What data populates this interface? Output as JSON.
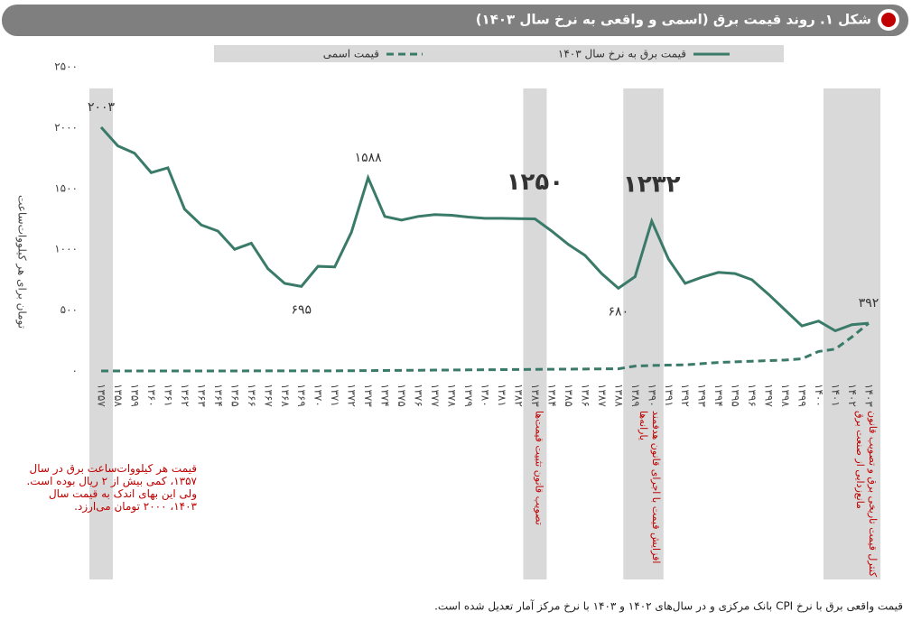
{
  "chart_data": {
    "type": "line",
    "title": "شکل ۱. روند قیمت برق (اسمی و واقعی به نرخ سال ۱۴۰۳)",
    "y_label": "تومان برای هر کیلووات‌ساعت",
    "footnote": "قیمت واقعی برق با نرخ CPI بانک مرکزی و در سال‌های ۱۴۰۲ و ۱۴۰۳ با نرخ مرکز آمار تعدیل شده است.",
    "categories": [
      "۱۳۵۷",
      "۱۳۵۸",
      "۱۳۵۹",
      "۱۳۶۰",
      "۱۳۶۱",
      "۱۳۶۲",
      "۱۳۶۳",
      "۱۳۶۴",
      "۱۳۶۵",
      "۱۳۶۶",
      "۱۳۶۷",
      "۱۳۶۸",
      "۱۳۶۹",
      "۱۳۷۰",
      "۱۳۷۱",
      "۱۳۷۲",
      "۱۳۷۳",
      "۱۳۷۴",
      "۱۳۷۵",
      "۱۳۷۶",
      "۱۳۷۷",
      "۱۳۷۸",
      "۱۳۷۹",
      "۱۳۸۰",
      "۱۳۸۱",
      "۱۳۸۲",
      "۱۳۸۳",
      "۱۳۸۴",
      "۱۳۸۵",
      "۱۳۸۶",
      "۱۳۸۷",
      "۱۳۸۸",
      "۱۳۸۹",
      "۱۳۹۰",
      "۱۳۹۱",
      "۱۳۹۲",
      "۱۳۹۳",
      "۱۳۹۴",
      "۱۳۹۵",
      "۱۳۹۶",
      "۱۳۹۷",
      "۱۳۹۸",
      "۱۳۹۹",
      "۱۴۰۰",
      "۱۴۰۱",
      "۱۴۰۲",
      "۱۴۰۳"
    ],
    "series": [
      {
        "name": "قیمت اسمی",
        "color": "#3a7a68",
        "dashed": true,
        "values": [
          0.2,
          0.2,
          0.2,
          0.2,
          0.3,
          0.3,
          0.3,
          0.3,
          0.4,
          0.5,
          0.5,
          0.6,
          0.7,
          1,
          1.2,
          2,
          3,
          4,
          5,
          6,
          7,
          8,
          9,
          10,
          11,
          12,
          13,
          14,
          15,
          16,
          17,
          18,
          40,
          45,
          48,
          50,
          60,
          70,
          75,
          80,
          85,
          90,
          100,
          160,
          180,
          280,
          392
        ]
      },
      {
        "name": "قیمت برق به نرخ سال ۱۴۰۳",
        "color": "#3a7a68",
        "dashed": false,
        "values": [
          2003,
          1850,
          1790,
          1630,
          1670,
          1330,
          1200,
          1150,
          1000,
          1050,
          840,
          720,
          695,
          860,
          855,
          1140,
          1588,
          1270,
          1240,
          1270,
          1285,
          1280,
          1265,
          1255,
          1255,
          1252,
          1250,
          1150,
          1040,
          950,
          800,
          680,
          775,
          1232,
          920,
          720,
          770,
          810,
          800,
          750,
          630,
          500,
          370,
          410,
          330,
          380,
          392
        ],
        "value_labels": [
          "۲۰۰۳",
          null,
          null,
          null,
          null,
          null,
          null,
          null,
          null,
          null,
          null,
          null,
          "۶۹۵",
          null,
          null,
          null,
          "۱۵۸۸",
          null,
          null,
          null,
          null,
          null,
          null,
          null,
          null,
          null,
          "۱۲۵۰",
          null,
          null,
          null,
          null,
          "۶۸۰",
          null,
          "۱۲۳۲",
          null,
          null,
          null,
          null,
          null,
          null,
          null,
          null,
          null,
          null,
          null,
          null,
          "۳۹۲"
        ]
      }
    ],
    "ylim": [
      0,
      2500
    ],
    "yticks": [
      {
        "value": 0,
        "label": "۰"
      },
      {
        "value": 500,
        "label": "۵۰۰"
      },
      {
        "value": 1000,
        "label": "۱۰۰۰"
      },
      {
        "value": 1500,
        "label": "۱۵۰۰"
      },
      {
        "value": 2000,
        "label": "۲۰۰۰"
      },
      {
        "value": 2500,
        "label": "۲۵۰۰"
      }
    ],
    "shaded_regions": [
      {
        "start": "۱۳۵۷",
        "end": "۱۳۵۷",
        "label": "قیمت هر کیلووات‌ساعت برق در سال ۱۳۵۷، کمی بیش از ۲ ریال بوده است. ولی این بهای اندک به قیمت سال ۱۴۰۳، ۲۰۰۰ تومان می‌ارزد."
      },
      {
        "start": "۱۳۸۳",
        "end": "۱۳۸۳",
        "label": "تصویب قانون تثبیت قیمت‌ها"
      },
      {
        "start": "۱۳۸۹",
        "end": "۱۳۹۰",
        "label": "افزایش قیمت با اجرای قانون هدفمند یارانه‌ها"
      },
      {
        "start": "۱۴۰۱",
        "end": "۱۴۰۳",
        "label": "کنترل قیمت تاریخی برق و تصویب قانون مانع‌زدایی از صنعت برق"
      }
    ],
    "region_color": "#d9d9d9"
  }
}
